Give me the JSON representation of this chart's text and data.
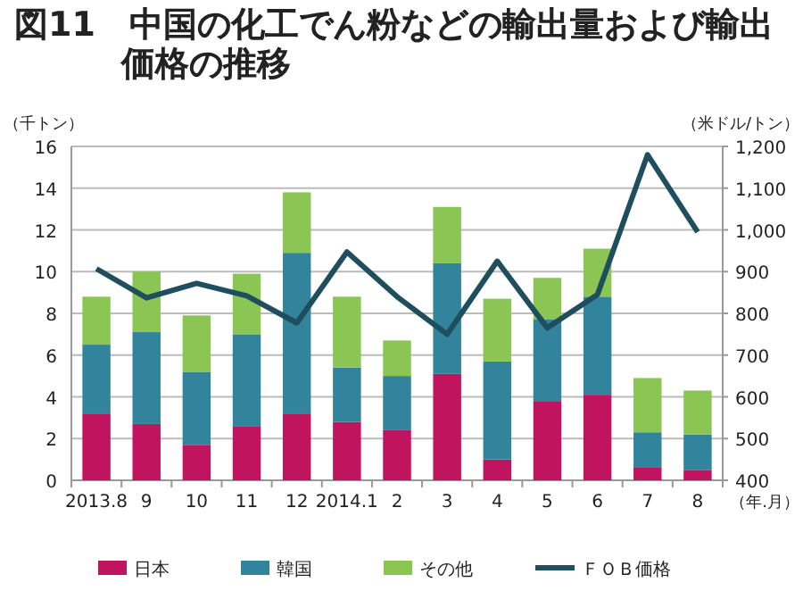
{
  "chart_data": {
    "type": "bar",
    "stacked": true,
    "title": "図11　中国の化工でん粉などの輸出量および輸出価格の推移",
    "ylabel": "（千トン）",
    "y2label": "（米ドル/トン）",
    "xlabel": "（年.月）",
    "categories": [
      "2013.8",
      "9",
      "10",
      "11",
      "12",
      "2014.1",
      "2",
      "3",
      "4",
      "5",
      "6",
      "7",
      "8"
    ],
    "series": [
      {
        "name": "日本",
        "color": "#c0145e",
        "values": [
          3.2,
          2.7,
          1.7,
          2.6,
          3.2,
          2.8,
          2.4,
          5.1,
          1.0,
          3.8,
          4.1,
          0.6,
          0.5
        ]
      },
      {
        "name": "韓国",
        "color": "#31849b",
        "values": [
          3.3,
          4.4,
          3.5,
          4.4,
          7.7,
          2.6,
          2.6,
          5.3,
          4.7,
          3.9,
          4.7,
          1.7,
          1.7
        ]
      },
      {
        "name": "その他",
        "color": "#8bc554",
        "values": [
          2.3,
          2.9,
          2.7,
          2.9,
          2.9,
          3.4,
          1.7,
          2.7,
          3.0,
          2.0,
          2.3,
          2.6,
          2.1
        ]
      },
      {
        "name": "ＦＯＢ価格",
        "type": "line",
        "axis": "y2",
        "color": "#1f4e5f",
        "values": [
          907,
          837,
          872,
          842,
          777,
          947,
          840,
          750,
          925,
          765,
          845,
          1180,
          995
        ]
      }
    ],
    "ylim": [
      0,
      16
    ],
    "yticks": [
      0,
      2,
      4,
      6,
      8,
      10,
      12,
      14,
      16
    ],
    "y2lim": [
      400,
      1200
    ],
    "y2ticks": [
      400,
      500,
      600,
      700,
      800,
      900,
      {
        "value": 1000,
        "label": "1,000"
      },
      {
        "value": 1100,
        "label": "1,100"
      },
      {
        "value": 1200,
        "label": "1,200"
      }
    ],
    "grid": "y",
    "legend": "bottom"
  }
}
